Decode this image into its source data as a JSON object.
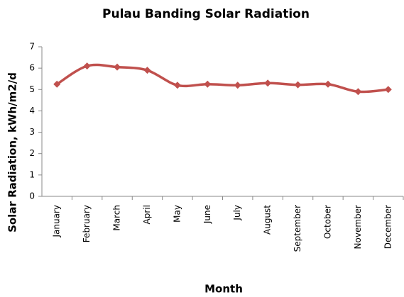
{
  "chart_data": {
    "type": "line",
    "title": "Pulau Banding Solar Radiation",
    "x_label": "Month",
    "y_label": "Solar Radiation, kWh/m2/d",
    "categories": [
      "January",
      "February",
      "March",
      "April",
      "May",
      "June",
      "July",
      "August",
      "September",
      "October",
      "November",
      "December"
    ],
    "series": [
      {
        "name": "Solar Radiation",
        "color": "#c0504d",
        "values": [
          5.25,
          6.1,
          6.05,
          5.9,
          5.2,
          5.25,
          5.2,
          5.3,
          5.22,
          5.25,
          4.9,
          5.0
        ]
      }
    ],
    "ylim": [
      0,
      7
    ],
    "yticks": [
      0,
      1,
      2,
      3,
      4,
      5,
      6,
      7
    ],
    "grid": false,
    "smooth": true
  }
}
